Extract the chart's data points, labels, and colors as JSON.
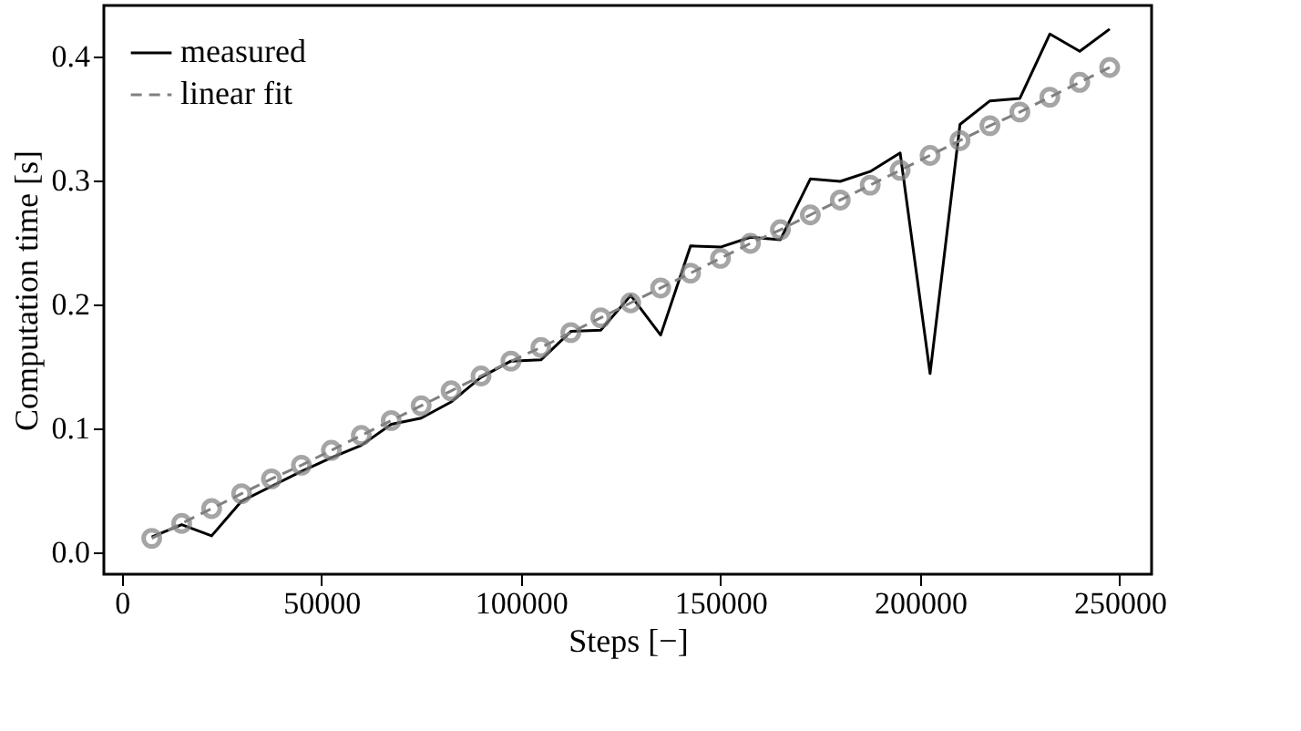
{
  "chart_data": {
    "type": "line",
    "xlabel": "Steps [−]",
    "ylabel": "Computation time [s]",
    "x": [
      7500,
      15000,
      22500,
      30000,
      37500,
      45000,
      52500,
      60000,
      67500,
      75000,
      82500,
      90000,
      97500,
      105000,
      112500,
      120000,
      127500,
      135000,
      142500,
      150000,
      157500,
      165000,
      172500,
      180000,
      187500,
      195000,
      202500,
      210000,
      217500,
      225000,
      232500,
      240000,
      247500
    ],
    "series": [
      {
        "name": "measured",
        "color": "#000000",
        "marker": "none",
        "line_style": "solid",
        "values": [
          0.012,
          0.022,
          0.013,
          0.041,
          0.053,
          0.065,
          0.076,
          0.086,
          0.103,
          0.108,
          0.121,
          0.141,
          0.154,
          0.155,
          0.178,
          0.179,
          0.207,
          0.175,
          0.247,
          0.246,
          0.254,
          0.252,
          0.301,
          0.299,
          0.307,
          0.322,
          0.144,
          0.345,
          0.364,
          0.366,
          0.418,
          0.404,
          0.422
        ]
      },
      {
        "name": "linear fit",
        "color": "#808080",
        "marker": "circle",
        "line_style": "dashed",
        "values": [
          0.011,
          0.023,
          0.035,
          0.047,
          0.059,
          0.07,
          0.082,
          0.094,
          0.106,
          0.118,
          0.13,
          0.142,
          0.154,
          0.165,
          0.177,
          0.189,
          0.201,
          0.213,
          0.225,
          0.237,
          0.249,
          0.26,
          0.272,
          0.284,
          0.296,
          0.308,
          0.32,
          0.332,
          0.344,
          0.355,
          0.367,
          0.379,
          0.391
        ]
      }
    ],
    "xlim": [
      -4500,
      258000
    ],
    "xticks": [
      0,
      50000,
      100000,
      150000,
      200000,
      250000
    ],
    "ylim": [
      -0.018,
      0.441
    ],
    "yticks": [
      {
        "value": 0,
        "label": "0.0"
      },
      {
        "value": 0.1,
        "label": "0.1"
      },
      {
        "value": 0.2,
        "label": "0.2"
      },
      {
        "value": 0.3,
        "label": "0.3"
      },
      {
        "value": 0.4,
        "label": "0.4"
      }
    ],
    "legend": "top left",
    "grid": false
  }
}
